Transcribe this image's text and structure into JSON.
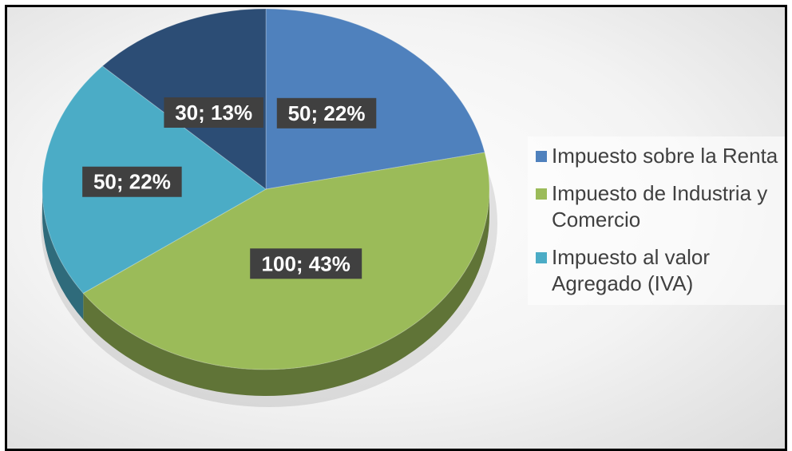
{
  "chart_data": {
    "type": "pie",
    "title": "",
    "categories": [
      "Impuesto sobre la Renta",
      "Impuesto de Industria y Comercio",
      "Impuesto al valor Agregado (IVA)",
      ""
    ],
    "values": [
      50,
      100,
      50,
      30
    ],
    "percentages": [
      22,
      43,
      22,
      13
    ],
    "data_labels": [
      "50; 22%",
      "100; 43%",
      "50; 22%",
      "30; 13%"
    ],
    "colors": [
      "#4f81bd",
      "#9bbb59",
      "#4bacc6",
      "#2c4d75"
    ],
    "style": "3d",
    "legend": {
      "position": "right",
      "entries": [
        {
          "label": "Impuesto sobre la Renta",
          "color": "#4f81bd"
        },
        {
          "label": "Impuesto de Industria y Comercio",
          "color": "#9bbb59"
        },
        {
          "label": "Impuesto al valor Agregado (IVA)",
          "color": "#4bacc6"
        }
      ]
    }
  }
}
